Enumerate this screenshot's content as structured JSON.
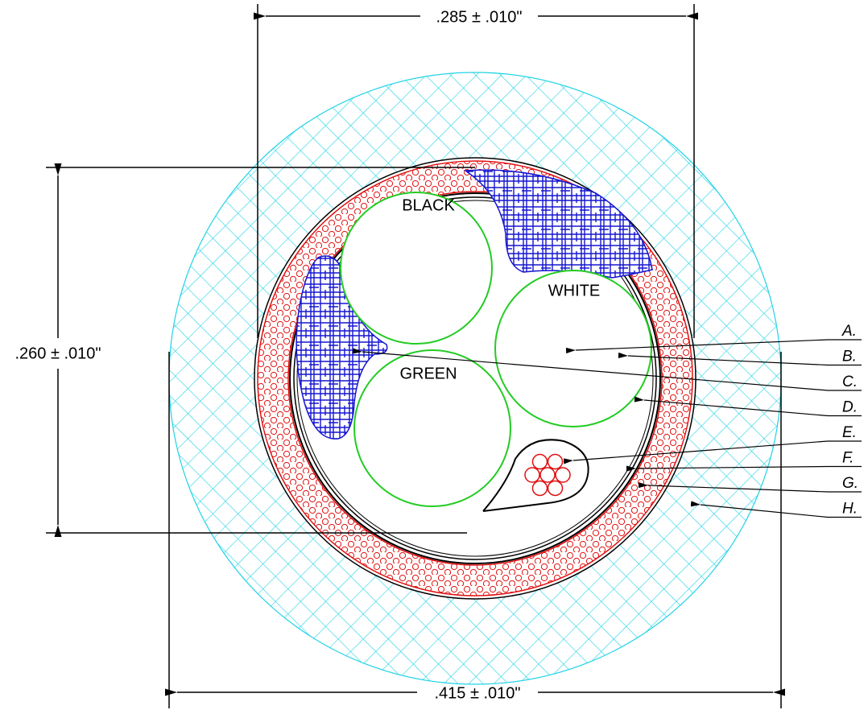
{
  "dimensions": [
    ".285 ± .010\"",
    ".260 ± .010\"",
    ".415 ± .010\""
  ],
  "conductors": [
    "BLACK",
    "WHITE",
    "GREEN"
  ],
  "callouts": [
    "A.",
    "B.",
    "C.",
    "D.",
    "E.",
    "F.",
    "G.",
    "H."
  ]
}
